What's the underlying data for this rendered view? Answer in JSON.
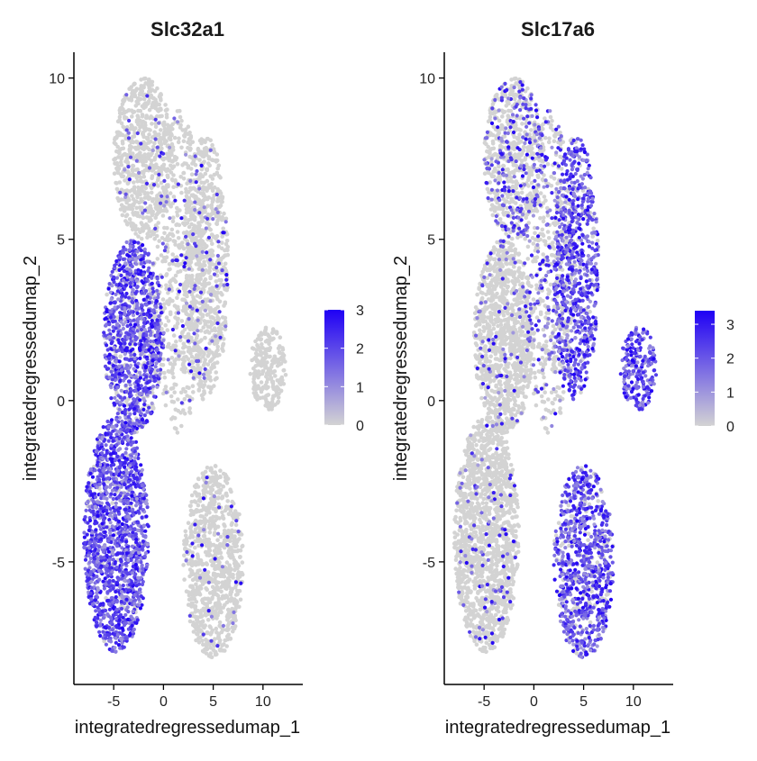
{
  "chart_data": [
    {
      "type": "scatter",
      "title": "Slc32a1",
      "xlabel": "integratedregressedumap_1",
      "ylabel": "integratedregressedumap_2",
      "xlim": [
        -9,
        14
      ],
      "ylim": [
        -8.8,
        10.8
      ],
      "xticks": [
        -5,
        0,
        5,
        10
      ],
      "yticks": [
        -5,
        0,
        5,
        10
      ],
      "grid": false,
      "legend": {
        "position": "right",
        "min": 0,
        "max": 3,
        "ticks": [
          0,
          1,
          2,
          3
        ],
        "color_low": "#d3d3d3",
        "color_high": "#1f00f5"
      },
      "clusters": [
        {
          "name": "left-lower-lobe",
          "x": [
            -8,
            -1.5
          ],
          "y": [
            -7.8,
            -0.5
          ],
          "expression": 0.95
        },
        {
          "name": "left-mid-band",
          "x": [
            -6,
            0
          ],
          "y": [
            -1,
            5
          ],
          "expression": 0.8
        },
        {
          "name": "upper-left-arm",
          "x": [
            -5,
            1
          ],
          "y": [
            5,
            10
          ],
          "expression": 0.05
        },
        {
          "name": "center-column",
          "x": [
            -1,
            4
          ],
          "y": [
            -1,
            9
          ],
          "expression": 0.12
        },
        {
          "name": "right-upper-arm",
          "x": [
            2,
            6.5
          ],
          "y": [
            0,
            8.2
          ],
          "expression": 0.08
        },
        {
          "name": "right-lower-lobe",
          "x": [
            2,
            8
          ],
          "y": [
            -8,
            -2
          ],
          "expression": 0.04
        },
        {
          "name": "isolated-cluster",
          "x": [
            8.7,
            12.3
          ],
          "y": [
            -0.3,
            2.3
          ],
          "expression": 0.0
        }
      ]
    },
    {
      "type": "scatter",
      "title": "Slc17a6",
      "xlabel": "integratedregressedumap_1",
      "ylabel": "integratedregressedumap_2",
      "xlim": [
        -9,
        14
      ],
      "ylim": [
        -8.8,
        10.8
      ],
      "xticks": [
        -5,
        0,
        5,
        10
      ],
      "yticks": [
        -5,
        0,
        5,
        10
      ],
      "grid": false,
      "legend": {
        "position": "right",
        "min": 0,
        "max": 3.4,
        "ticks": [
          0,
          1,
          2,
          3
        ],
        "color_low": "#d3d3d3",
        "color_high": "#1f00f5"
      },
      "clusters": [
        {
          "name": "left-lower-lobe",
          "x": [
            -8,
            -1.5
          ],
          "y": [
            -7.8,
            -0.5
          ],
          "expression": 0.06
        },
        {
          "name": "left-mid-band",
          "x": [
            -6,
            0
          ],
          "y": [
            -1,
            5
          ],
          "expression": 0.08
        },
        {
          "name": "upper-left-arm",
          "x": [
            -5,
            1
          ],
          "y": [
            5,
            10
          ],
          "expression": 0.25
        },
        {
          "name": "center-column",
          "x": [
            -1,
            4
          ],
          "y": [
            -1,
            9
          ],
          "expression": 0.35
        },
        {
          "name": "right-upper-arm",
          "x": [
            2,
            6.5
          ],
          "y": [
            0,
            8.2
          ],
          "expression": 0.85
        },
        {
          "name": "right-lower-lobe",
          "x": [
            2,
            8
          ],
          "y": [
            -8,
            -2
          ],
          "expression": 0.8
        },
        {
          "name": "isolated-cluster",
          "x": [
            8.7,
            12.3
          ],
          "y": [
            -0.3,
            2.3
          ],
          "expression": 0.98
        }
      ]
    }
  ]
}
